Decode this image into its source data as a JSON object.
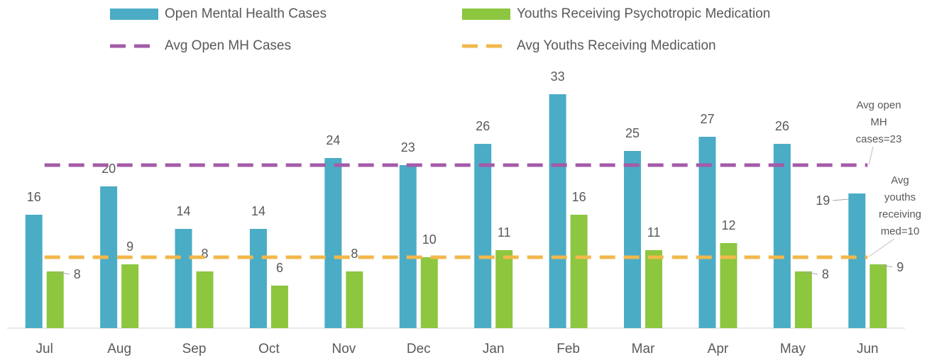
{
  "chart_data": {
    "type": "bar",
    "categories": [
      "Jul",
      "Aug",
      "Sep",
      "Oct",
      "Nov",
      "Dec",
      "Jan",
      "Feb",
      "Mar",
      "Apr",
      "May",
      "Jun"
    ],
    "series": [
      {
        "name": "Open Mental Health Cases",
        "color": "#4bacc6",
        "values": [
          16,
          20,
          14,
          14,
          24,
          23,
          26,
          33,
          25,
          27,
          26,
          19
        ]
      },
      {
        "name": "Youths Receiving Psychotropic Medication",
        "color": "#8dc63f",
        "values": [
          8,
          9,
          8,
          6,
          8,
          10,
          11,
          16,
          11,
          12,
          8,
          9
        ]
      }
    ],
    "avg_lines": [
      {
        "name": "Avg Open MH Cases",
        "color": "#a35ba8",
        "value": 23,
        "annotation": [
          "Avg open",
          "MH",
          "cases=23"
        ]
      },
      {
        "name": "Avg Youths Receiving Medication",
        "color": "#f2b84b",
        "value": 10,
        "annotation": [
          "Avg",
          "youths",
          "receiving",
          "med=10"
        ]
      }
    ],
    "ylim": [
      0,
      36
    ]
  }
}
